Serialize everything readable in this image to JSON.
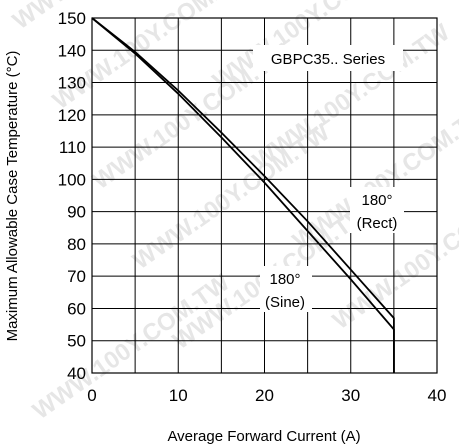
{
  "chart_data": {
    "type": "line",
    "title": "",
    "xlabel": "Average Forward Current (A)",
    "ylabel": "Maximum Allowable Case Temperature (°C)",
    "xlim": [
      0,
      40
    ],
    "ylim": [
      40,
      150
    ],
    "xticks": [
      0,
      10,
      20,
      30,
      40
    ],
    "yticks": [
      40,
      50,
      60,
      70,
      80,
      90,
      100,
      110,
      120,
      130,
      140,
      150
    ],
    "grid": true,
    "series": [
      {
        "name": "180° (Rect)",
        "x": [
          0,
          5,
          10,
          15,
          20,
          25,
          30,
          35,
          35
        ],
        "y": [
          150,
          139.5,
          127.5,
          114.5,
          101,
          87,
          72,
          57,
          40
        ]
      },
      {
        "name": "180° (Sine)",
        "x": [
          0,
          5,
          10,
          15,
          20,
          25,
          30,
          35,
          35
        ],
        "y": [
          150,
          139,
          126.5,
          113,
          99,
          84,
          69,
          53.5,
          40
        ]
      }
    ],
    "annotations": {
      "series_label": "GBPC35.. Series",
      "rect_line1": "180°",
      "rect_line2": "(Rect)",
      "sine_line1": "180°",
      "sine_line2": "(Sine)"
    },
    "watermark": "WWW.100Y.COM.TW"
  }
}
